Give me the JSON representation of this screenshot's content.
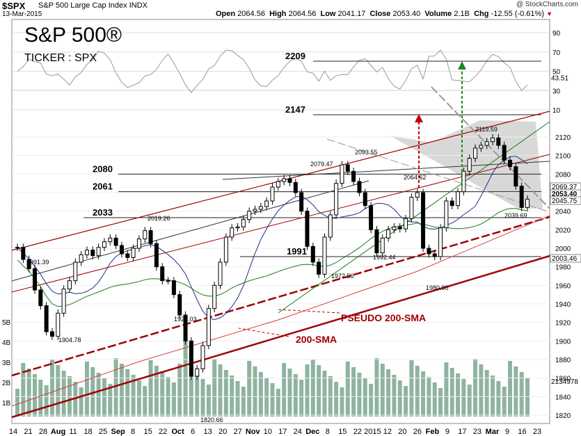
{
  "header": {
    "symbol": "$SPX",
    "description": "S&P 500 Large Cap Index",
    "exchange": "INDX",
    "date": "13-Mar-2015",
    "credit": "@ StockCharts.com",
    "open_label": "Open",
    "open": "2064.56",
    "high_label": "High",
    "high": "2064.56",
    "low_label": "Low",
    "low": "2041.17",
    "close_label": "Close",
    "close": "2053.40",
    "volume_label": "Volume",
    "volume": "2.1B",
    "chg_label": "Chg",
    "chg": "-12.55 (-0.61%)"
  },
  "overlay": {
    "title": "S&P 500®",
    "ticker": "TICKER : SPX"
  },
  "chart_data": {
    "type": "candlestick",
    "x_axis_labels": [
      "14",
      "21",
      "28",
      "Aug",
      "11",
      "18",
      "25",
      "Sep",
      "8",
      "15",
      "22",
      "Oct",
      "6",
      "13",
      "20",
      "27",
      "Nov",
      "10",
      "17",
      "24",
      "Dec",
      "8",
      "15",
      "22",
      "2015",
      "12",
      "20",
      "26",
      "Feb",
      "9",
      "17",
      "23",
      "Mar",
      "9",
      "16",
      "23"
    ],
    "y_ticks": [
      1820,
      1840,
      1860,
      1880,
      1900,
      1920,
      1940,
      1960,
      1980,
      2000,
      2020,
      2040,
      2060,
      2080,
      2100,
      2120
    ],
    "ylim": [
      1810,
      2145
    ],
    "rsi_ticks": [
      10,
      30,
      50,
      70,
      90
    ],
    "volume_ticks": [
      "1B",
      "2B",
      "3B",
      "4B",
      "5B"
    ],
    "price_path": [
      2001,
      1988,
      1978,
      1955,
      1938,
      1910,
      1905,
      1930,
      1956,
      1965,
      1985,
      1993,
      1998,
      1992,
      2001,
      2007,
      2011,
      2003,
      1994,
      1990,
      2000,
      2010,
      2019,
      2005,
      1980,
      1965,
      1965,
      1950,
      1928,
      1900,
      1862,
      1870,
      1895,
      1935,
      1960,
      1985,
      2012,
      2022,
      2023,
      2031,
      2040,
      2042,
      2045,
      2051,
      2066,
      2072,
      2075,
      2071,
      2060,
      2040,
      2002,
      1985,
      1972,
      2012,
      2036,
      2070,
      2090,
      2083,
      2072,
      2060,
      2046,
      2020,
      1995,
      2011,
      2020,
      2023,
      2021,
      2032,
      2055,
      2060,
      2000,
      1994,
      1991,
      2022,
      2051,
      2046,
      2061,
      2083,
      2097,
      2108,
      2111,
      2115,
      2119,
      2111,
      2095,
      2088,
      2067,
      2044,
      2053
    ],
    "levels": [
      {
        "label": "2209",
        "value": 2209
      },
      {
        "label": "2147",
        "value": 2147
      },
      {
        "label": "2080",
        "value": 2080
      },
      {
        "label": "2061",
        "value": 2061
      },
      {
        "label": "2033",
        "value": 2033
      },
      {
        "label": "1991",
        "value": 1991
      }
    ],
    "price_annotations": [
      {
        "text": "1991.39",
        "value": 1991.39
      },
      {
        "text": "2019.26",
        "value": 2019.26
      },
      {
        "text": "2079.47",
        "value": 2079.47
      },
      {
        "text": "2093.55",
        "value": 2093.55
      },
      {
        "text": "2064.62",
        "value": 2064.62
      },
      {
        "text": "2119.59",
        "value": 2119.59
      },
      {
        "text": "2039.69",
        "value": 2039.69
      },
      {
        "text": "1992.44",
        "value": 1992.44
      },
      {
        "text": "1980.90",
        "value": 1980.9
      },
      {
        "text": "1972.56",
        "value": 1972.56
      },
      {
        "text": "1926.03",
        "value": 1926.03
      },
      {
        "text": "1904.78",
        "value": 1904.78
      },
      {
        "text": "1820.66",
        "value": 1820.66
      }
    ],
    "right_labels": [
      {
        "text": "2069.37",
        "value": 2069.37
      },
      {
        "text": "2053.40",
        "value": 2053.4
      },
      {
        "text": "2045.75",
        "value": 2045.75
      },
      {
        "text": "2003.46",
        "value": 2003.46
      }
    ],
    "rsi_last": "43.51",
    "volume_last": "2134978",
    "annotations": [
      "PSEUDO 200-SMA",
      "200-SMA"
    ]
  },
  "colors": {
    "candle": "#000000",
    "sma50": "#1f2d8a",
    "sma200": "#1a7a1a",
    "channel": "#a00000",
    "arrow_red": "#c00000",
    "arrow_green": "#1a8a1a",
    "volume": "#8fb3a0",
    "wedge": "#c8c8c8"
  }
}
